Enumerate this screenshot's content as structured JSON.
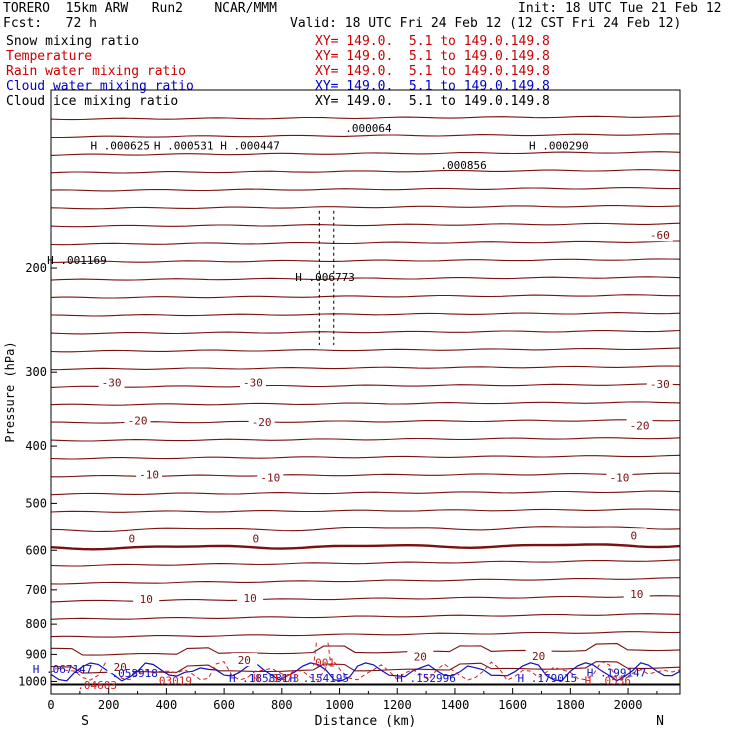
{
  "header": {
    "model": "TORERO  15km ARW   Run2    NCAR/MMM",
    "init": "Init: 18 UTC Tue 21 Feb 12",
    "fcst": "Fcst:   72 h",
    "valid": "Valid: 18 UTC Fri 24 Feb 12 (12 CST Fri 24 Feb 12)"
  },
  "legend": [
    {
      "name": "Snow mixing ratio",
      "xy": "",
      "color": "#000000"
    },
    {
      "name": "Temperature",
      "xy": "XY= 149.0.  5.1 to 149.0.149.8",
      "color": "#cc0000"
    },
    {
      "name": "Rain water mixing ratio",
      "xy": "XY= 149.0.  5.1 to 149.0.149.8",
      "color": "#cc0000"
    },
    {
      "name": "Cloud water mixing ratio",
      "xy": "XY= 149.0.  5.1 to 149.0.149.8",
      "color": "#0000cc"
    },
    {
      "name": "Cloud ice mixing ratio",
      "xy": "XY= 149.0.  5.1 to 149.0.149.8",
      "color": "#000000"
    }
  ],
  "legend_first_xy": "XY= 149.0.  5.1 to 149.0.149.8",
  "chart_data": {
    "type": "contour",
    "xlabel": "Distance (km)",
    "ylabel": "Pressure (hPa)",
    "xlim": [
      0,
      2180
    ],
    "ylim": [
      1050,
      100
    ],
    "yscale": "log",
    "x_ticks": [
      0,
      200,
      400,
      600,
      800,
      1000,
      1200,
      1400,
      1600,
      1800,
      2000
    ],
    "y_ticks": [
      200,
      300,
      400,
      500,
      600,
      700,
      800,
      900,
      1000
    ],
    "x_end_labels": [
      "S",
      "N"
    ],
    "temperature_labels": [
      {
        "text": "-60",
        "x": 2110,
        "p": 176
      },
      {
        "text": "-30",
        "x": 210,
        "p": 312
      },
      {
        "text": "-30",
        "x": 700,
        "p": 312
      },
      {
        "text": "-30",
        "x": 2110,
        "p": 314
      },
      {
        "text": "-20",
        "x": 300,
        "p": 362
      },
      {
        "text": "-20",
        "x": 730,
        "p": 364
      },
      {
        "text": "-20",
        "x": 2040,
        "p": 369
      },
      {
        "text": "-10",
        "x": 340,
        "p": 447
      },
      {
        "text": "-10",
        "x": 760,
        "p": 452
      },
      {
        "text": "-10",
        "x": 1970,
        "p": 452
      },
      {
        "text": "0",
        "x": 280,
        "p": 573
      },
      {
        "text": "0",
        "x": 710,
        "p": 573
      },
      {
        "text": "0",
        "x": 2020,
        "p": 566
      },
      {
        "text": "10",
        "x": 330,
        "p": 725
      },
      {
        "text": "10",
        "x": 690,
        "p": 722
      },
      {
        "text": "10",
        "x": 2030,
        "p": 712
      },
      {
        "text": "20",
        "x": 670,
        "p": 920
      },
      {
        "text": "20",
        "x": 1280,
        "p": 908
      },
      {
        "text": "20",
        "x": 1690,
        "p": 905
      },
      {
        "text": "20",
        "x": 240,
        "p": 946
      }
    ],
    "ice_labels": [
      {
        "marker": "H",
        "value": ".000625",
        "x": 240,
        "p": 124
      },
      {
        "marker": "H",
        "value": ".000531",
        "x": 460,
        "p": 124
      },
      {
        "marker": "H",
        "value": ".000447",
        "x": 690,
        "p": 124
      },
      {
        "marker": "",
        "value": ".000064",
        "x": 1100,
        "p": 116
      },
      {
        "marker": "",
        "value": ".000856",
        "x": 1430,
        "p": 134
      },
      {
        "marker": "H",
        "value": ".000290",
        "x": 1760,
        "p": 124
      },
      {
        "marker": "H",
        "value": ".001169",
        "x": 90,
        "p": 194
      },
      {
        "marker": "H",
        "value": ".006773",
        "x": 950,
        "p": 207
      }
    ],
    "cloud_water_labels": [
      {
        "marker": "H",
        "value": ".067147",
        "x": 40,
        "p": 953
      },
      {
        "marker": "",
        "value": ".058918",
        "x": 290,
        "p": 968
      },
      {
        "marker": "H",
        "value": ".185881",
        "x": 720,
        "p": 986
      },
      {
        "marker": "H",
        "value": ".154195",
        "x": 930,
        "p": 986
      },
      {
        "marker": "H",
        "value": ".152996",
        "x": 1300,
        "p": 986
      },
      {
        "marker": "H",
        "value": ".179015",
        "x": 1720,
        "p": 986
      },
      {
        "marker": "H",
        "value": ".199147",
        "x": 1960,
        "p": 966
      }
    ],
    "rain_labels": [
      {
        "marker": "",
        "value": ".03019",
        "x": 420,
        "p": 996
      },
      {
        "marker": "H",
        "value": ".1473",
        "x": 780,
        "p": 986
      },
      {
        "marker": "H",
        "value": ".0536",
        "x": 1930,
        "p": 996
      },
      {
        "marker": "",
        "value": ".04603",
        "x": 160,
        "p": 1013
      },
      {
        "marker": "",
        "value": "001",
        "x": 950,
        "p": 928
      }
    ]
  }
}
